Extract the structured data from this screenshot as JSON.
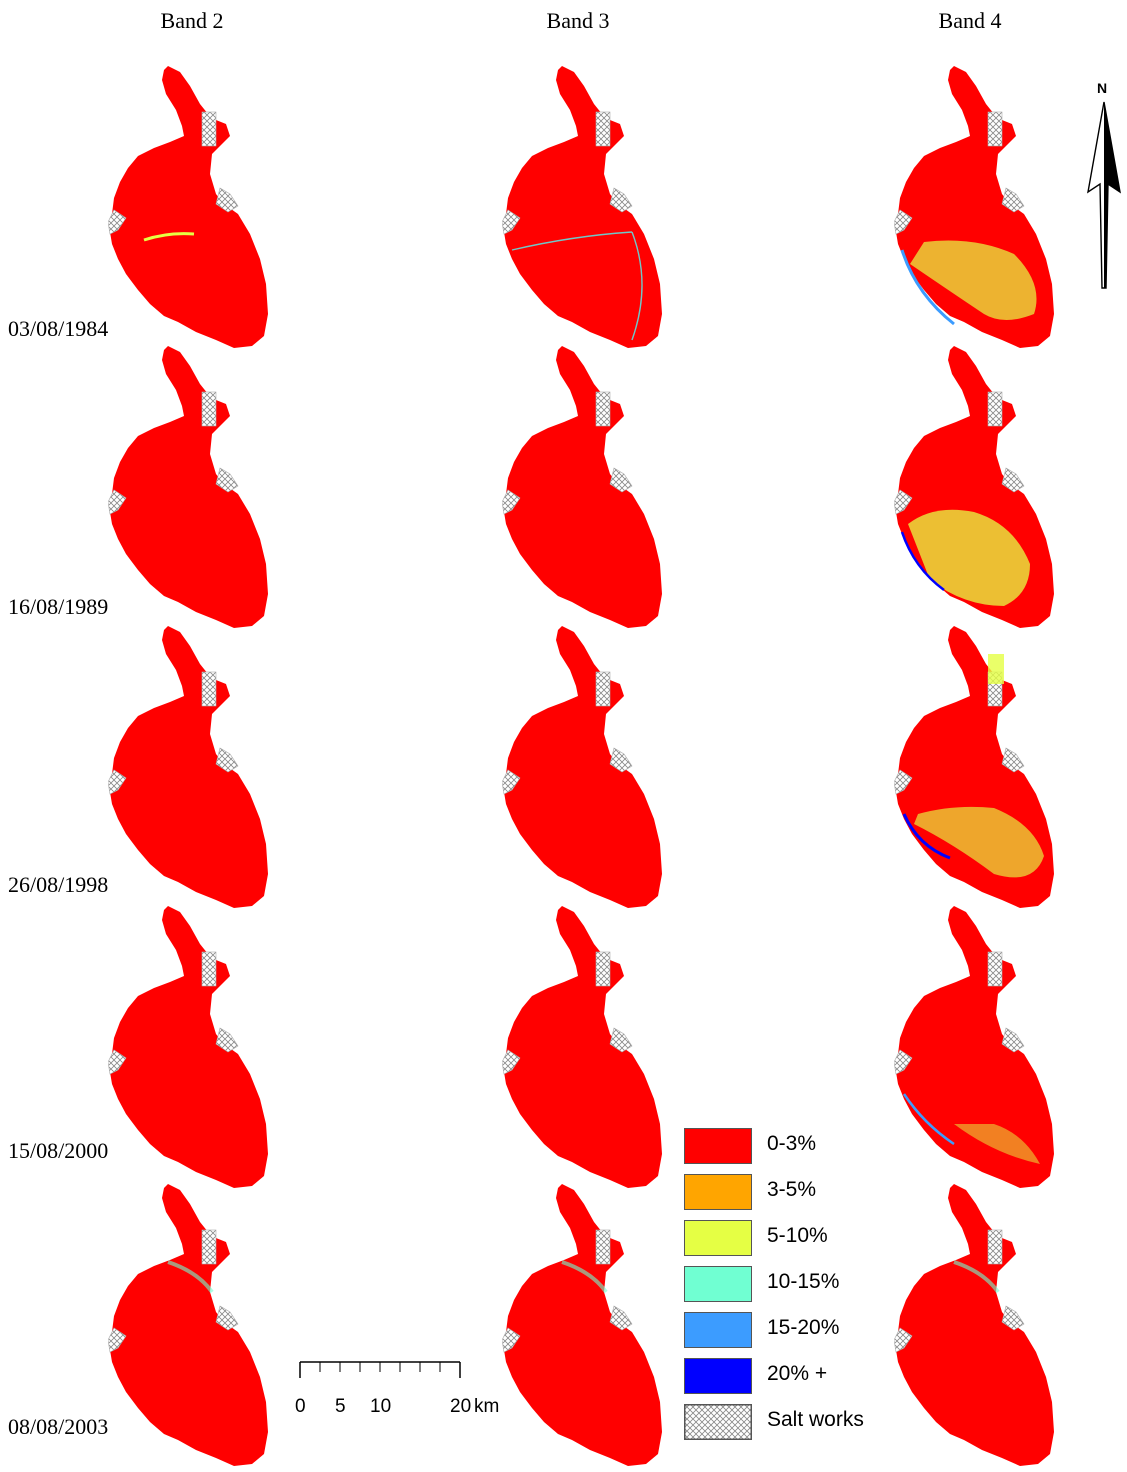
{
  "columns": [
    "Band 2",
    "Band 3",
    "Band 4"
  ],
  "dates": [
    "03/08/1984",
    "16/08/1989",
    "26/08/1998",
    "15/08/2000",
    "08/08/2003"
  ],
  "legend": [
    {
      "label": "0-3%",
      "color": "#ff0000"
    },
    {
      "label": "3-5%",
      "color": "#ffa500"
    },
    {
      "label": "5-10%",
      "color": "#e5ff44"
    },
    {
      "label": "10-15%",
      "color": "#70ffd2"
    },
    {
      "label": "15-20%",
      "color": "#3c9cff"
    },
    {
      "label": "20% +",
      "color": "#0000ff"
    },
    {
      "label": "Salt works",
      "color": "#ffffff"
    }
  ],
  "scale": {
    "ticks": [
      "0",
      "5",
      "10",
      "20"
    ],
    "unit": "km"
  },
  "north_arrow": {
    "label": "N"
  },
  "colors": {
    "water_low": "#ff0000",
    "salt_works_pattern": "#888888"
  }
}
